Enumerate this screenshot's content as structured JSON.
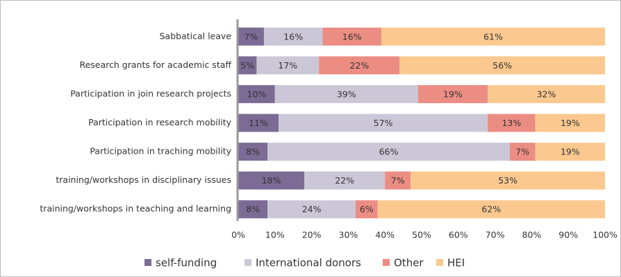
{
  "chart_data": {
    "type": "stacked_barh",
    "categories": [
      "Sabbatical leave",
      "Research grants for academic staff",
      "Participation in join research projects",
      "Participation in research mobility",
      "Participation in traching mobility",
      "training/workshops in disciplinary issues",
      "training/workshops in teaching and learning"
    ],
    "series": [
      {
        "name": "self-funding",
        "color": "#7b6b95",
        "values": [
          7,
          5,
          10,
          11,
          8,
          18,
          8
        ],
        "value_labels": [
          "7%",
          "5%",
          "10%",
          "11%",
          "8%",
          "18%",
          "8%"
        ]
      },
      {
        "name": "International donors",
        "color": "#ccc7d7",
        "values": [
          16,
          17,
          39,
          57,
          66,
          22,
          24
        ],
        "value_labels": [
          "16%",
          "17%",
          "39%",
          "57%",
          "66%",
          "22%",
          "24%"
        ]
      },
      {
        "name": "Other",
        "color": "#ec8d84",
        "values": [
          16,
          22,
          19,
          13,
          7,
          7,
          6
        ],
        "value_labels": [
          "16%",
          "22%",
          "19%",
          "13%",
          "7%",
          "7%",
          "6%"
        ]
      },
      {
        "name": "HEI",
        "color": "#fbc98f",
        "values": [
          61,
          56,
          32,
          19,
          19,
          53,
          62
        ],
        "value_labels": [
          "61%",
          "56%",
          "32%",
          "19%",
          "19%",
          "53%",
          "62%"
        ]
      }
    ],
    "xlim": [
      0,
      100
    ],
    "xticks": [
      {
        "value": 0,
        "label": "0%"
      },
      {
        "value": 10,
        "label": "10%"
      },
      {
        "value": 20,
        "label": "20%"
      },
      {
        "value": 30,
        "label": "30%"
      },
      {
        "value": 40,
        "label": "40%"
      },
      {
        "value": 50,
        "label": "50%"
      },
      {
        "value": 60,
        "label": "60%"
      },
      {
        "value": 70,
        "label": "70%"
      },
      {
        "value": 80,
        "label": "80%"
      },
      {
        "value": 90,
        "label": "90%"
      },
      {
        "value": 100,
        "label": "100%"
      }
    ],
    "legend": "bottom"
  }
}
